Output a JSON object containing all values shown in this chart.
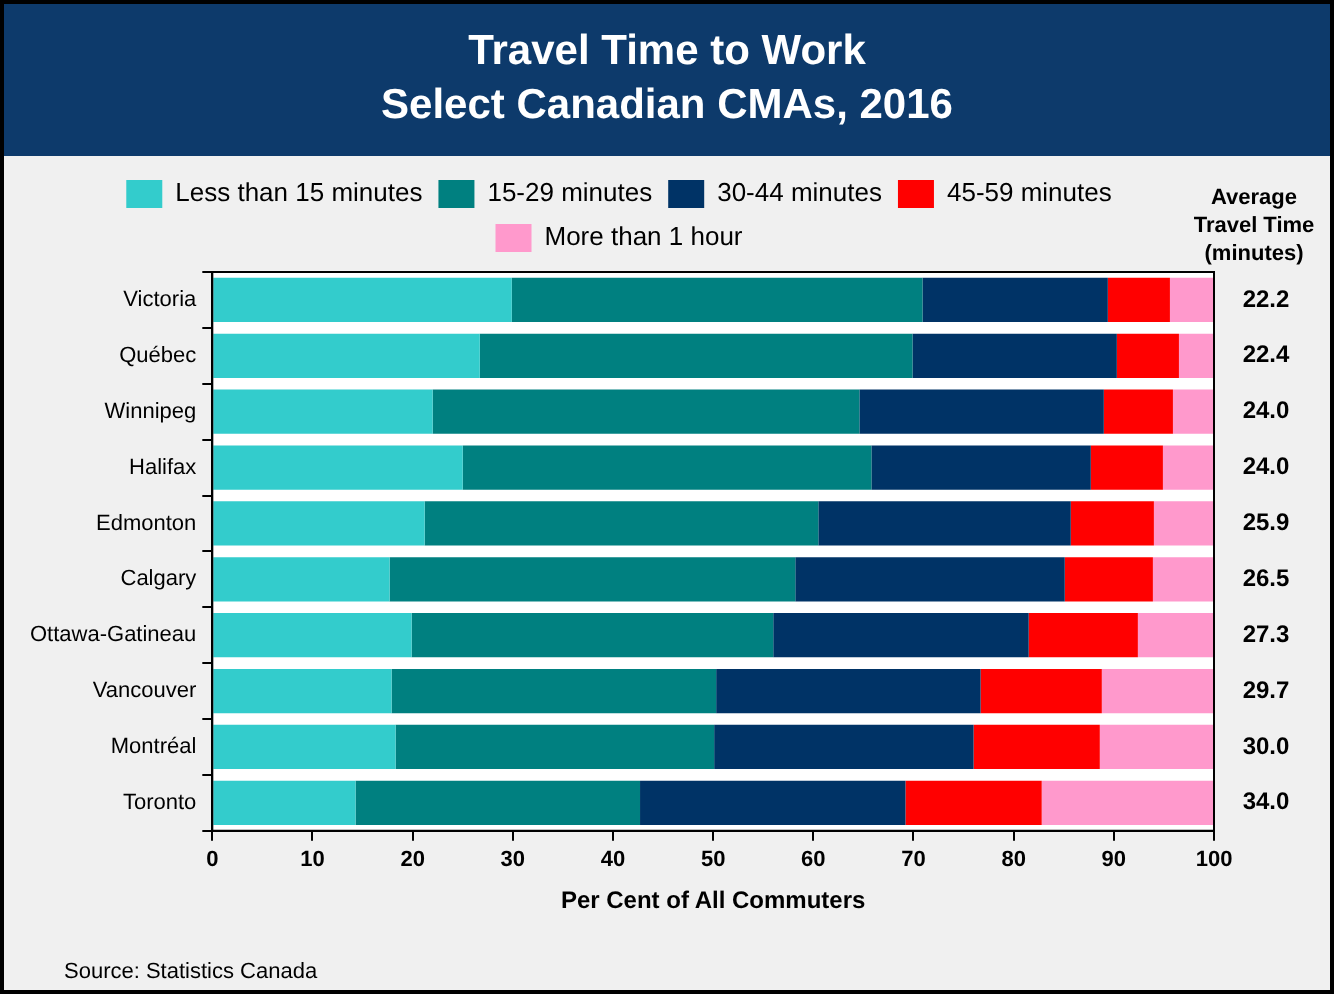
{
  "chart_data": {
    "type": "bar",
    "orientation": "horizontal",
    "stacked": true,
    "title": "Travel Time to Work",
    "subtitle": "Select Canadian CMAs, 2016",
    "xlabel": "Per Cent of All Commuters",
    "categories": [
      "Victoria",
      "Québec",
      "Winnipeg",
      "Halifax",
      "Edmonton",
      "Calgary",
      "Ottawa-Gatineau",
      "Vancouver",
      "Montréal",
      "Toronto"
    ],
    "series": [
      {
        "name": "Less than 15 minutes",
        "color": "#33cccc",
        "values": [
          29.9,
          26.7,
          22.0,
          25.0,
          21.2,
          17.7,
          19.9,
          17.9,
          18.3,
          14.3
        ]
      },
      {
        "name": "15-29 minutes",
        "color": "#008080",
        "values": [
          41.0,
          43.2,
          42.6,
          40.8,
          39.3,
          40.5,
          36.1,
          32.4,
          31.8,
          28.4
        ]
      },
      {
        "name": "30-44 minutes",
        "color": "#003366",
        "values": [
          18.5,
          20.4,
          24.4,
          21.9,
          25.2,
          26.9,
          25.5,
          26.4,
          25.9,
          26.5
        ]
      },
      {
        "name": "45-59 minutes",
        "color": "#ff0000",
        "values": [
          6.2,
          6.2,
          6.9,
          7.2,
          8.3,
          8.8,
          10.9,
          12.1,
          12.6,
          13.6
        ]
      },
      {
        "name": "More than 1 hour",
        "color": "#ff99cc",
        "values": [
          4.4,
          3.5,
          4.1,
          5.1,
          6.0,
          6.0,
          7.6,
          11.2,
          11.4,
          17.2
        ]
      }
    ],
    "xlim": [
      0,
      100
    ],
    "xticks": [
      0,
      10,
      20,
      30,
      40,
      50,
      60,
      70,
      80,
      90,
      100
    ],
    "grid": false,
    "legend": "top",
    "annotations": [
      "Average Travel Time (minutes)",
      "22.2",
      "22.4",
      "24.0",
      "24.0",
      "25.9",
      "26.5",
      "27.3",
      "29.7",
      "30.0",
      "34.0",
      "Source: Statistics Canada"
    ]
  }
}
